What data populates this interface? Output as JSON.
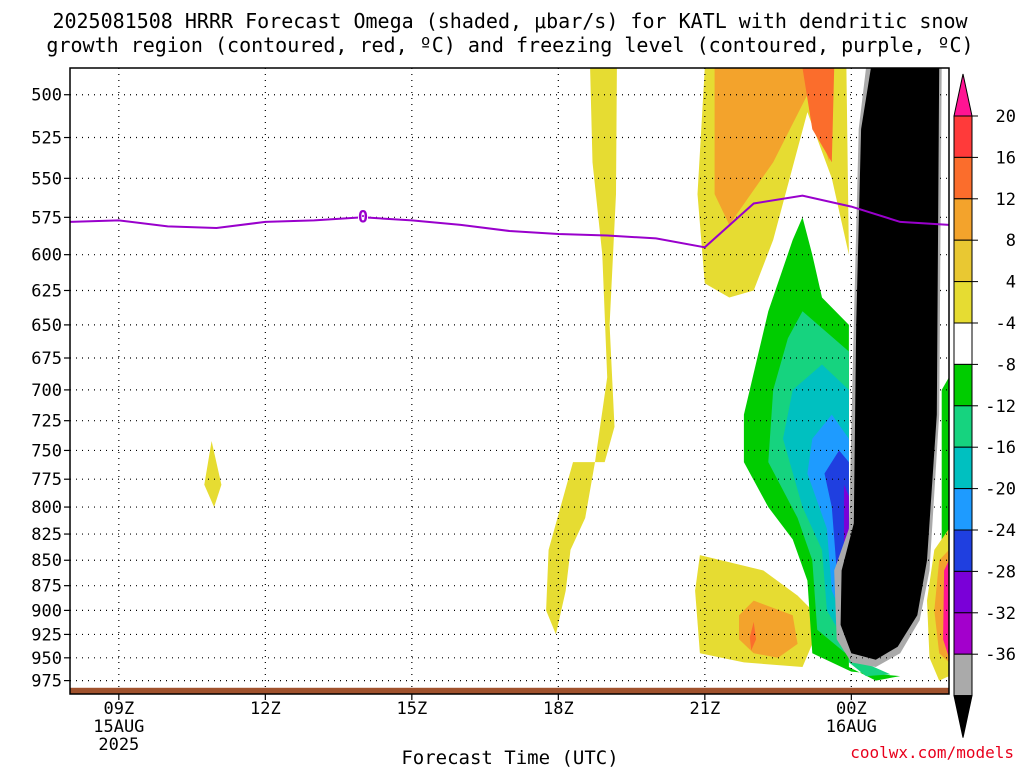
{
  "title": {
    "line1": "2025081508 HRRR Forecast Omega (shaded, μbar/s) for KATL with dendritic snow",
    "line2": "growth region (contoured, red, ºC) and freezing level (contoured, purple, ºC)"
  },
  "credit": "coolwx.com/models",
  "chart_data": {
    "type": "time-height filled contour",
    "xlabel": "Forecast Time (UTC)",
    "ylabel": "",
    "y_axis": {
      "ticks": [
        500,
        525,
        550,
        575,
        600,
        625,
        650,
        675,
        700,
        725,
        750,
        775,
        800,
        825,
        850,
        875,
        900,
        925,
        950,
        975
      ],
      "range": [
        485,
        990
      ],
      "scale": "log-pressure",
      "inverted": true
    },
    "x_axis": {
      "tick_labels": [
        {
          "hour": 9,
          "lines": [
            "09Z",
            "15AUG",
            "2025"
          ]
        },
        {
          "hour": 12,
          "lines": [
            "12Z"
          ]
        },
        {
          "hour": 15,
          "lines": [
            "15Z"
          ]
        },
        {
          "hour": 18,
          "lines": [
            "18Z"
          ]
        },
        {
          "hour": 21,
          "lines": [
            "21Z"
          ]
        },
        {
          "hour": 24,
          "lines": [
            "00Z",
            "16AUG"
          ]
        }
      ],
      "range": [
        8,
        26
      ]
    },
    "grid": true,
    "colorbar": {
      "levels": [
        20,
        16,
        12,
        8,
        4,
        -4,
        -8,
        -12,
        -16,
        -20,
        -24,
        -28,
        -32,
        -36
      ],
      "colors": [
        "#ff1493",
        "#ff3a3a",
        "#fb6d2c",
        "#f3a32c",
        "#e9c832",
        "#e6dc32",
        "#ffffff",
        "#00cc00",
        "#16d37f",
        "#00c0c0",
        "#1e9bff",
        "#1f3fe0",
        "#7a00d8",
        "#a300cc",
        "#aaaaaa",
        "#000000"
      ]
    },
    "freezing_level": {
      "color": "#9900cc",
      "label": "0",
      "points": [
        {
          "hour": 8,
          "pressure": 578
        },
        {
          "hour": 9,
          "pressure": 577
        },
        {
          "hour": 10,
          "pressure": 581
        },
        {
          "hour": 11,
          "pressure": 582
        },
        {
          "hour": 12,
          "pressure": 578
        },
        {
          "hour": 13,
          "pressure": 577
        },
        {
          "hour": 14,
          "pressure": 575
        },
        {
          "hour": 15,
          "pressure": 577
        },
        {
          "hour": 16,
          "pressure": 580
        },
        {
          "hour": 17,
          "pressure": 584
        },
        {
          "hour": 18,
          "pressure": 586
        },
        {
          "hour": 19,
          "pressure": 587
        },
        {
          "hour": 20,
          "pressure": 589
        },
        {
          "hour": 21,
          "pressure": 595
        },
        {
          "hour": 22,
          "pressure": 566
        },
        {
          "hour": 23,
          "pressure": 561
        },
        {
          "hour": 24,
          "pressure": 568
        },
        {
          "hour": 25,
          "pressure": 578
        },
        {
          "hour": 26,
          "pressure": 580
        }
      ]
    },
    "omega_regions": [
      {
        "level": "4 to 8",
        "color": "#e6dc32",
        "points": [
          [
            18.65,
            485
          ],
          [
            19.2,
            485
          ],
          [
            19.18,
            560
          ],
          [
            19.05,
            650
          ],
          [
            19.15,
            730
          ],
          [
            18.95,
            760
          ],
          [
            18.3,
            760
          ],
          [
            17.8,
            840
          ],
          [
            17.75,
            900
          ],
          [
            17.95,
            925
          ],
          [
            18.15,
            880
          ],
          [
            18.25,
            840
          ],
          [
            18.55,
            810
          ],
          [
            18.75,
            760
          ],
          [
            19.0,
            690
          ],
          [
            18.9,
            600
          ],
          [
            18.7,
            540
          ]
        ]
      },
      {
        "level": "4 to 8",
        "color": "#e6dc32",
        "points": [
          [
            10.9,
            742
          ],
          [
            11.1,
            780
          ],
          [
            10.95,
            800
          ],
          [
            10.75,
            780
          ]
        ]
      },
      {
        "level": "4 to 8",
        "color": "#e6dc32",
        "points": [
          [
            21.0,
            485
          ],
          [
            23.9,
            485
          ],
          [
            23.95,
            600
          ],
          [
            23.6,
            550
          ],
          [
            23.1,
            510
          ],
          [
            22.4,
            590
          ],
          [
            22.0,
            625
          ],
          [
            21.5,
            630
          ],
          [
            21.0,
            620
          ],
          [
            20.85,
            560
          ]
        ]
      },
      {
        "level": "8 to 12",
        "color": "#f3a32c",
        "points": [
          [
            21.2,
            485
          ],
          [
            23.6,
            485
          ],
          [
            23.55,
            540
          ],
          [
            23.1,
            500
          ],
          [
            22.4,
            540
          ],
          [
            21.5,
            580
          ],
          [
            21.2,
            560
          ]
        ]
      },
      {
        "level": "12 to 16",
        "color": "#fb6d2c",
        "points": [
          [
            23.0,
            485
          ],
          [
            23.65,
            485
          ],
          [
            23.6,
            540
          ],
          [
            23.2,
            520
          ]
        ]
      },
      {
        "level": "4 to 8",
        "color": "#e6dc32",
        "points": [
          [
            20.9,
            845
          ],
          [
            22.2,
            860
          ],
          [
            22.9,
            885
          ],
          [
            23.2,
            900
          ],
          [
            23.2,
            935
          ],
          [
            23.0,
            960
          ],
          [
            21.8,
            955
          ],
          [
            20.9,
            945
          ],
          [
            20.8,
            880
          ]
        ]
      },
      {
        "level": "8 to 12",
        "color": "#f3a32c",
        "points": [
          [
            22.0,
            890
          ],
          [
            22.8,
            905
          ],
          [
            22.9,
            935
          ],
          [
            22.5,
            950
          ],
          [
            22.0,
            945
          ],
          [
            21.7,
            930
          ],
          [
            21.7,
            905
          ]
        ]
      },
      {
        "level": "12 to 16",
        "color": "#fb6d2c",
        "points": [
          [
            22.0,
            912
          ],
          [
            22.05,
            930
          ],
          [
            21.95,
            942
          ],
          [
            21.92,
            928
          ]
        ]
      },
      {
        "level": "-4 to -8",
        "color": "#00cc00",
        "points": [
          [
            23.0,
            575
          ],
          [
            23.2,
            600
          ],
          [
            23.4,
            630
          ],
          [
            23.95,
            650
          ],
          [
            23.95,
            960
          ],
          [
            24.5,
            975
          ],
          [
            25.0,
            970
          ],
          [
            24.0,
            965
          ],
          [
            23.2,
            945
          ],
          [
            23.1,
            870
          ],
          [
            22.8,
            830
          ],
          [
            22.3,
            800
          ],
          [
            21.8,
            760
          ],
          [
            21.8,
            720
          ],
          [
            22.3,
            640
          ],
          [
            22.8,
            590
          ]
        ]
      },
      {
        "level": "-8 to -12",
        "color": "#16d37f",
        "points": [
          [
            23.0,
            640
          ],
          [
            23.95,
            670
          ],
          [
            23.95,
            955
          ],
          [
            24.3,
            970
          ],
          [
            24.8,
            968
          ],
          [
            23.95,
            948
          ],
          [
            23.3,
            920
          ],
          [
            23.2,
            850
          ],
          [
            22.9,
            810
          ],
          [
            22.3,
            760
          ],
          [
            22.4,
            700
          ],
          [
            22.7,
            660
          ]
        ]
      },
      {
        "level": "-12 to -16",
        "color": "#00c0c0",
        "points": [
          [
            23.4,
            680
          ],
          [
            23.95,
            700
          ],
          [
            23.95,
            940
          ],
          [
            23.5,
            900
          ],
          [
            23.4,
            840
          ],
          [
            23.0,
            800
          ],
          [
            22.6,
            740
          ],
          [
            22.8,
            700
          ]
        ]
      },
      {
        "level": "-16 to -20",
        "color": "#1e9bff",
        "points": [
          [
            23.6,
            720
          ],
          [
            23.95,
            740
          ],
          [
            23.95,
            920
          ],
          [
            23.6,
            880
          ],
          [
            23.5,
            820
          ],
          [
            23.1,
            770
          ],
          [
            23.2,
            740
          ]
        ]
      },
      {
        "level": "-20 to -24",
        "color": "#1f3fe0",
        "points": [
          [
            23.75,
            750
          ],
          [
            23.95,
            760
          ],
          [
            23.95,
            900
          ],
          [
            23.7,
            860
          ],
          [
            23.6,
            800
          ],
          [
            23.45,
            770
          ]
        ]
      },
      {
        "level": "-24 to -28",
        "color": "#7a00d8",
        "points": [
          [
            23.85,
            780
          ],
          [
            23.95,
            790
          ],
          [
            23.95,
            880
          ],
          [
            23.85,
            840
          ]
        ]
      },
      {
        "level": "-32 to -36",
        "color": "#aaaaaa",
        "points": [
          [
            24.3,
            485
          ],
          [
            25.85,
            485
          ],
          [
            25.8,
            720
          ],
          [
            25.6,
            860
          ],
          [
            25.4,
            910
          ],
          [
            25.0,
            945
          ],
          [
            24.5,
            960
          ],
          [
            24.0,
            955
          ],
          [
            23.7,
            930
          ],
          [
            23.65,
            860
          ],
          [
            23.95,
            820
          ],
          [
            24.05,
            650
          ],
          [
            24.15,
            520
          ]
        ]
      },
      {
        "level": "< -36",
        "color": "#000000",
        "points": [
          [
            24.4,
            485
          ],
          [
            25.8,
            485
          ],
          [
            25.75,
            720
          ],
          [
            25.55,
            850
          ],
          [
            25.35,
            905
          ],
          [
            24.95,
            938
          ],
          [
            24.5,
            952
          ],
          [
            24.0,
            945
          ],
          [
            23.78,
            915
          ],
          [
            23.8,
            860
          ],
          [
            24.05,
            815
          ],
          [
            24.1,
            650
          ],
          [
            24.2,
            520
          ]
        ]
      },
      {
        "level": "-4 to -8",
        "color": "#00cc00",
        "points": [
          [
            25.85,
            700
          ],
          [
            26.0,
            690
          ],
          [
            26.0,
            850
          ],
          [
            25.85,
            870
          ]
        ]
      },
      {
        "level": "4 to 8",
        "color": "#e6dc32",
        "points": [
          [
            25.7,
            840
          ],
          [
            26.0,
            820
          ],
          [
            26.0,
            970
          ],
          [
            25.8,
            975
          ],
          [
            25.6,
            950
          ],
          [
            25.55,
            890
          ]
        ]
      },
      {
        "level": "8 to 12",
        "color": "#f3a32c",
        "points": [
          [
            25.8,
            850
          ],
          [
            26.0,
            840
          ],
          [
            26.0,
            955
          ],
          [
            25.8,
            945
          ],
          [
            25.7,
            900
          ]
        ]
      },
      {
        "level": "> 20",
        "color": "#ff1493",
        "points": [
          [
            25.9,
            860
          ],
          [
            26.0,
            850
          ],
          [
            26.0,
            950
          ],
          [
            25.88,
            930
          ]
        ]
      }
    ],
    "ground": {
      "color": "#a0522d",
      "pressure": 983
    }
  }
}
